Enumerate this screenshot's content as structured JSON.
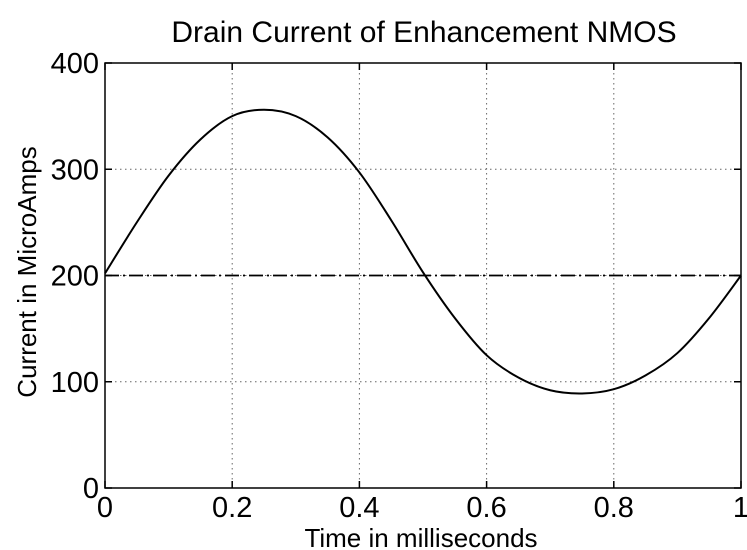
{
  "chart_data": {
    "type": "line",
    "title": "Drain Current of Enhancement NMOS",
    "xlabel": "Time in milliseconds",
    "ylabel": "Current in MicroAmps",
    "xlim": [
      0,
      1
    ],
    "ylim": [
      0,
      400
    ],
    "xticks": [
      0,
      0.2,
      0.4,
      0.6,
      0.8,
      1
    ],
    "xtick_labels": [
      "0",
      "0.2",
      "0.4",
      "0.6",
      "0.8",
      "1"
    ],
    "yticks": [
      0,
      100,
      200,
      300,
      400
    ],
    "ytick_labels": [
      "0",
      "100",
      "200",
      "300",
      "400"
    ],
    "grid": true,
    "legend": "none",
    "series": [
      {
        "style": "solid",
        "x": [
          0,
          0.05,
          0.1,
          0.15,
          0.2,
          0.25,
          0.3,
          0.35,
          0.4,
          0.45,
          0.5,
          0.55,
          0.6,
          0.65,
          0.7,
          0.75,
          0.8,
          0.85,
          0.9,
          0.95,
          1.0
        ],
        "values": [
          202,
          250,
          294,
          328,
          350,
          356,
          350,
          330,
          297,
          252,
          203,
          160,
          125,
          104,
          92,
          89,
          93,
          106,
          127,
          160,
          200
        ]
      },
      {
        "style": "dash-dot",
        "x": [
          0,
          1
        ],
        "values": [
          200,
          200
        ]
      }
    ]
  }
}
